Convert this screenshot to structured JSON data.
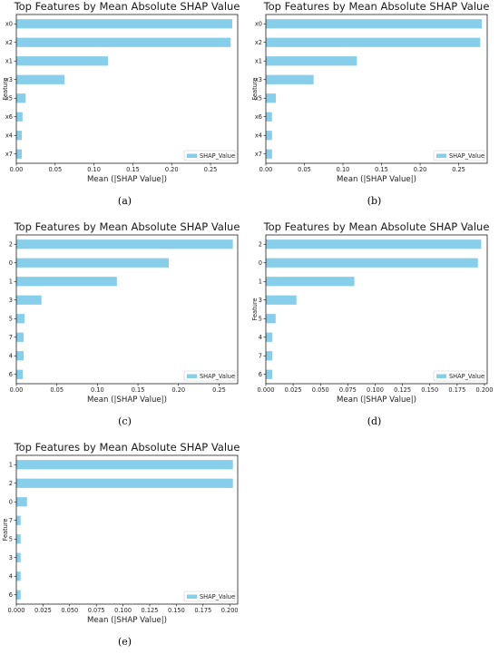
{
  "colors": {
    "bar": "#87CEEB",
    "axis": "#000000"
  },
  "chart_data": [
    {
      "id": "a",
      "type": "bar",
      "orientation": "horizontal",
      "title": "Top Features by Mean Absolute SHAP Value",
      "xlabel": "Mean (|SHAP Value|)",
      "ylabel": "Feature",
      "categories": [
        "x0",
        "x2",
        "x1",
        "x3",
        "x5",
        "x6",
        "x4",
        "x7"
      ],
      "series": [
        {
          "name": "SHAP_Value",
          "values": [
            0.278,
            0.276,
            0.118,
            0.062,
            0.012,
            0.008,
            0.007,
            0.007
          ]
        }
      ],
      "xlim": [
        0,
        0.285
      ],
      "xticks": [
        0.0,
        0.05,
        0.1,
        0.15,
        0.2,
        0.25
      ],
      "xtick_labels": [
        "0.00",
        "0.05",
        "0.10",
        "0.15",
        "0.20",
        "0.25"
      ],
      "legend": "lower-right",
      "caption": "(a)"
    },
    {
      "id": "b",
      "type": "bar",
      "orientation": "horizontal",
      "title": "Top Features by Mean Absolute SHAP Value",
      "xlabel": "Mean (|SHAP Value|)",
      "ylabel": "Feature",
      "categories": [
        "x0",
        "x2",
        "x1",
        "x3",
        "x5",
        "x6",
        "x4",
        "x7"
      ],
      "series": [
        {
          "name": "SHAP_Value",
          "values": [
            0.28,
            0.278,
            0.118,
            0.062,
            0.013,
            0.008,
            0.008,
            0.008
          ]
        }
      ],
      "xlim": [
        0,
        0.287
      ],
      "xticks": [
        0.0,
        0.05,
        0.1,
        0.15,
        0.2,
        0.25
      ],
      "xtick_labels": [
        "0.00",
        "0.05",
        "0.10",
        "0.15",
        "0.20",
        "0.25"
      ],
      "legend": "lower-right",
      "caption": "(b)"
    },
    {
      "id": "c",
      "type": "bar",
      "orientation": "horizontal",
      "title": "Top Features by Mean Absolute SHAP Value",
      "xlabel": "Mean (|SHAP Value|)",
      "ylabel": "",
      "categories": [
        "2",
        "0",
        "1",
        "3",
        "5",
        "7",
        "4",
        "6"
      ],
      "series": [
        {
          "name": "SHAP_Value",
          "values": [
            0.267,
            0.188,
            0.124,
            0.031,
            0.01,
            0.009,
            0.009,
            0.008
          ]
        }
      ],
      "xlim": [
        0,
        0.273
      ],
      "xticks": [
        0.0,
        0.05,
        0.1,
        0.15,
        0.2,
        0.25
      ],
      "xtick_labels": [
        "0.00",
        "0.05",
        "0.10",
        "0.15",
        "0.20",
        "0.25"
      ],
      "legend": "lower-right",
      "caption": "(c)"
    },
    {
      "id": "d",
      "type": "bar",
      "orientation": "horizontal",
      "title": "Top Features by Mean Absolute SHAP Value",
      "xlabel": "Mean (|SHAP Value|)",
      "ylabel": "Feature",
      "categories": [
        "2",
        "0",
        "1",
        "3",
        "5",
        "4",
        "7",
        "6"
      ],
      "series": [
        {
          "name": "SHAP_Value",
          "values": [
            0.197,
            0.194,
            0.081,
            0.028,
            0.009,
            0.006,
            0.006,
            0.006
          ]
        }
      ],
      "xlim": [
        0,
        0.2025
      ],
      "xticks": [
        0.0,
        0.025,
        0.05,
        0.075,
        0.1,
        0.125,
        0.15,
        0.175,
        0.2
      ],
      "xtick_labels": [
        "0.000",
        "0.025",
        "0.050",
        "0.075",
        "0.100",
        "0.125",
        "0.150",
        "0.175",
        "0.200"
      ],
      "legend": "lower-right",
      "caption": "(d)"
    },
    {
      "id": "e",
      "type": "bar",
      "orientation": "horizontal",
      "title": "Top Features by Mean Absolute SHAP Value",
      "xlabel": "Mean (|SHAP Value|)",
      "ylabel": "Feature",
      "categories": [
        "1",
        "2",
        "0",
        "7",
        "5",
        "3",
        "4",
        "6"
      ],
      "series": [
        {
          "name": "SHAP_Value",
          "values": [
            0.203,
            0.203,
            0.01,
            0.004,
            0.004,
            0.004,
            0.004,
            0.004
          ]
        }
      ],
      "xlim": [
        0,
        0.2075
      ],
      "xticks": [
        0.0,
        0.025,
        0.05,
        0.075,
        0.1,
        0.125,
        0.15,
        0.175,
        0.2
      ],
      "xtick_labels": [
        "0.000",
        "0.025",
        "0.050",
        "0.075",
        "0.100",
        "0.125",
        "0.150",
        "0.175",
        "0.200"
      ],
      "legend": "lower-right",
      "caption": "(e)"
    }
  ]
}
